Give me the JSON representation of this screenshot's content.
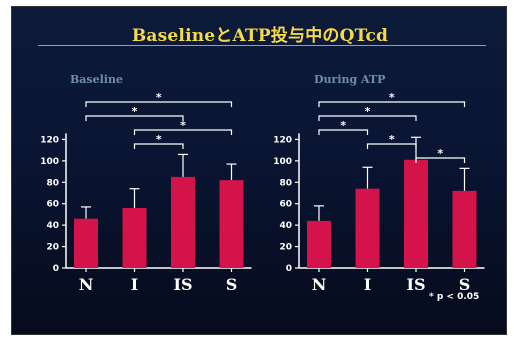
{
  "title": "BaselineとATP投与中のQTcd",
  "note": "* p < 0.05",
  "colors": {
    "bar": "#d4134a",
    "axis": "#ffffff",
    "title": "#f4d94a",
    "panel_label": "#6e8fa8"
  },
  "chart_data": [
    {
      "type": "bar",
      "panel_label": "Baseline",
      "categories": [
        "N",
        "I",
        "IS",
        "S"
      ],
      "values": [
        46,
        56,
        85,
        82
      ],
      "error_plus": [
        11,
        18,
        21,
        15
      ],
      "ylim": [
        0,
        140
      ],
      "yticks": [
        0,
        20,
        40,
        60,
        80,
        100,
        120
      ],
      "significance": [
        {
          "from": 0,
          "to": 3,
          "label": "*"
        },
        {
          "from": 0,
          "to": 2,
          "label": "*"
        },
        {
          "from": 1,
          "to": 3,
          "label": "*"
        },
        {
          "from": 1,
          "to": 2,
          "label": "*"
        }
      ]
    },
    {
      "type": "bar",
      "panel_label": "During ATP",
      "categories": [
        "N",
        "I",
        "IS",
        "S"
      ],
      "values": [
        44,
        74,
        101,
        72
      ],
      "error_plus": [
        14,
        20,
        21,
        21
      ],
      "ylim": [
        0,
        140
      ],
      "yticks": [
        0,
        20,
        40,
        60,
        80,
        100,
        120
      ],
      "significance": [
        {
          "from": 0,
          "to": 3,
          "label": "*"
        },
        {
          "from": 0,
          "to": 2,
          "label": "*"
        },
        {
          "from": 0,
          "to": 1,
          "label": "*"
        },
        {
          "from": 1,
          "to": 2,
          "label": "*"
        },
        {
          "from": 2,
          "to": 3,
          "label": "*"
        }
      ]
    }
  ]
}
